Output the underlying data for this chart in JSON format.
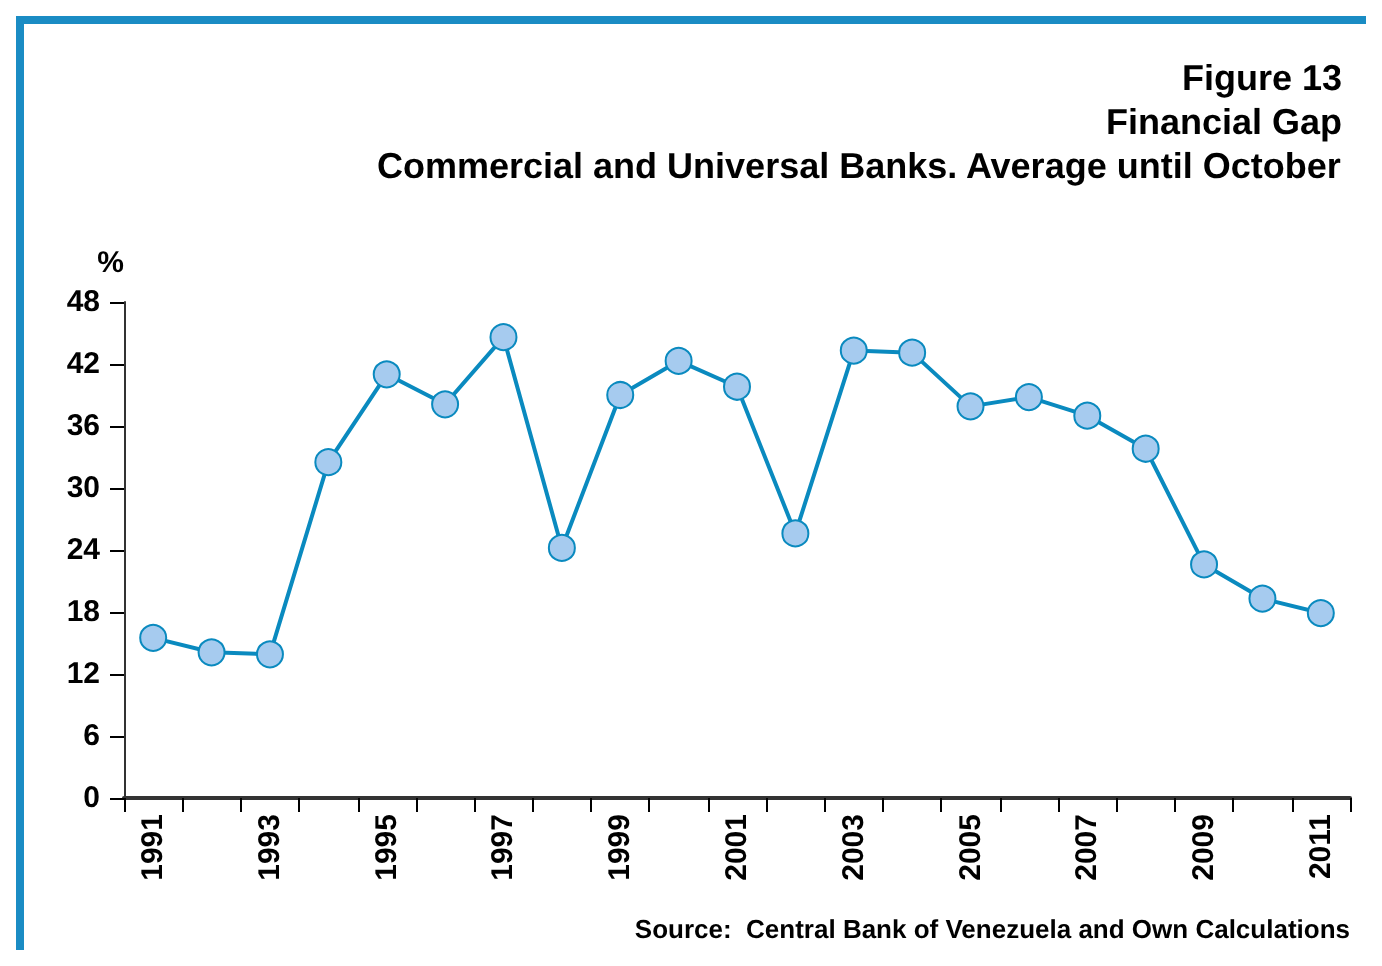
{
  "chart_data": {
    "type": "line",
    "title": "Figure 13",
    "subtitle": "Financial Gap",
    "annotations": [
      "Commercial and Universal Banks. Average until October",
      "Source:  Central Bank of Venezuela and Own Calculations"
    ],
    "ylabel": "%",
    "categories": [
      "1991",
      null,
      "1993",
      null,
      "1995",
      null,
      "1997",
      null,
      "1999",
      null,
      "2001",
      null,
      "2003",
      null,
      "2005",
      null,
      "2007",
      null,
      "2009",
      null,
      "2011"
    ],
    "series": [
      {
        "color": "#0a8abf",
        "values": [
          15.5,
          14.1,
          13.9,
          32.5,
          41.0,
          38.1,
          44.6,
          24.2,
          39.0,
          42.3,
          39.8,
          25.6,
          43.3,
          43.1,
          37.9,
          38.8,
          37.0,
          33.8,
          22.6,
          19.3,
          17.9
        ]
      }
    ],
    "ylim": [
      0,
      48
    ],
    "yticks": [
      0,
      6,
      12,
      18,
      24,
      30,
      36,
      42,
      48
    ],
    "grid": false,
    "marker": "circle",
    "line_style": "solid"
  }
}
